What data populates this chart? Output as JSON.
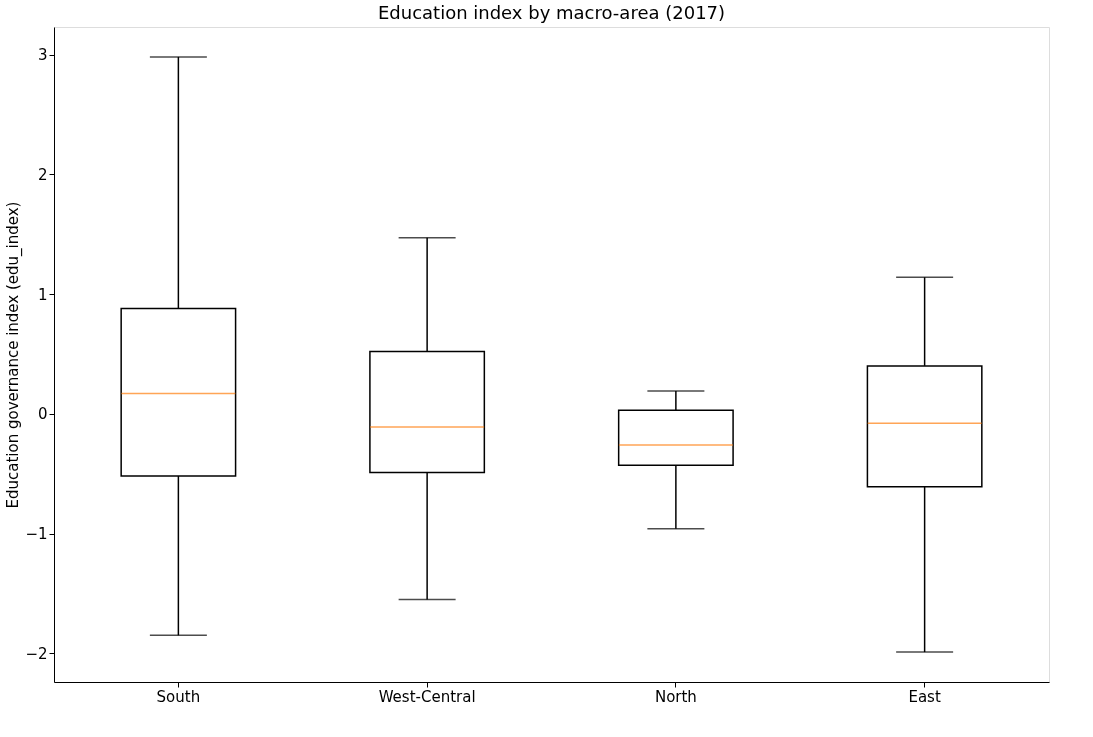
{
  "chart_data": {
    "type": "box",
    "title": "Education index by macro-area (2017)",
    "ylabel": "Education governance index (edu_index)",
    "categories": [
      "South",
      "West-Central",
      "North",
      "East"
    ],
    "boxes": [
      {
        "low": -1.85,
        "q1": -0.52,
        "median": 0.17,
        "q3": 0.88,
        "high": 2.98
      },
      {
        "low": -1.55,
        "q1": -0.49,
        "median": -0.11,
        "q3": 0.52,
        "high": 1.47
      },
      {
        "low": -0.96,
        "q1": -0.43,
        "median": -0.26,
        "q3": 0.03,
        "high": 0.19
      },
      {
        "low": -1.99,
        "q1": -0.61,
        "median": -0.08,
        "q3": 0.4,
        "high": 1.14
      }
    ],
    "ylim": [
      -2.24,
      3.23
    ],
    "yticks": [
      -2,
      -1,
      0,
      1,
      2,
      3
    ],
    "grid": false
  }
}
